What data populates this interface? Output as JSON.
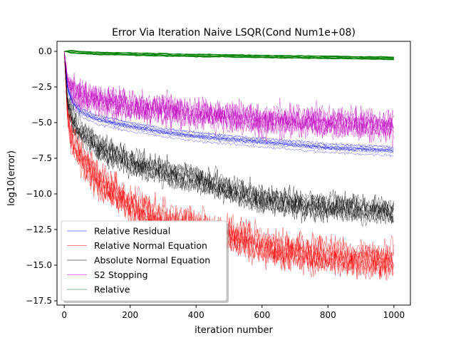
{
  "chart_data": {
    "type": "line",
    "title": "Error Via Iteration Naive LSQR(Cond Num1e+08)",
    "xlabel": "iteration number",
    "ylabel": "log10(error)",
    "xlim": [
      -22,
      1050
    ],
    "ylim": [
      -17.8,
      0.7
    ],
    "xticks": [
      0,
      200,
      400,
      600,
      800,
      1000
    ],
    "xtick_labels": [
      "0",
      "200",
      "400",
      "600",
      "800",
      "1000"
    ],
    "yticks": [
      0.0,
      -2.5,
      -5.0,
      -7.5,
      -10.0,
      -12.5,
      -15.0,
      -17.5
    ],
    "ytick_labels": [
      "0.0",
      "−2.5",
      "−5.0",
      "−7.5",
      "−10.0",
      "−12.5",
      "−15.0",
      "−17.5"
    ],
    "grid": false,
    "legend_position": "lower-left",
    "series": [
      {
        "name": "Relative Residual",
        "color": "#0000ff",
        "curves": 10,
        "x": [
          0,
          10,
          25,
          50,
          100,
          200,
          300,
          400,
          500,
          600,
          700,
          800,
          900,
          1000
        ],
        "y": [
          0,
          -2.6,
          -3.6,
          -4.3,
          -4.8,
          -5.3,
          -5.7,
          -6.0,
          -6.2,
          -6.4,
          -6.6,
          -6.8,
          -6.9,
          -7.0
        ]
      },
      {
        "name": "Relative Normal Equation",
        "color": "#ff0000",
        "curves": 10,
        "x": [
          0,
          10,
          25,
          50,
          100,
          200,
          300,
          400,
          500,
          600,
          700,
          800,
          900,
          1000
        ],
        "y": [
          0,
          -4.5,
          -6.0,
          -7.3,
          -8.8,
          -10.7,
          -11.8,
          -12.3,
          -12.8,
          -13.6,
          -14.0,
          -14.3,
          -14.5,
          -14.7
        ]
      },
      {
        "name": "Absolute Normal Equation",
        "color": "#000000",
        "curves": 10,
        "x": [
          0,
          10,
          25,
          50,
          100,
          200,
          300,
          400,
          500,
          600,
          700,
          800,
          900,
          1000
        ],
        "y": [
          0,
          -3.6,
          -4.7,
          -5.6,
          -6.6,
          -7.7,
          -8.4,
          -8.9,
          -9.6,
          -10.3,
          -10.6,
          -10.8,
          -11.0,
          -11.2
        ]
      },
      {
        "name": "S2 Stopping",
        "color": "#bf00bf",
        "curves": 10,
        "x": [
          0,
          10,
          25,
          50,
          100,
          200,
          300,
          400,
          500,
          600,
          700,
          800,
          900,
          1000
        ],
        "y": [
          0,
          -2.0,
          -2.6,
          -3.0,
          -3.4,
          -3.8,
          -4.1,
          -4.4,
          -4.6,
          -4.8,
          -4.9,
          -5.0,
          -5.1,
          -5.2
        ]
      },
      {
        "name": "Relative",
        "color": "#008000",
        "curves": 10,
        "x": [
          0,
          50,
          100,
          200,
          300,
          400,
          500,
          600,
          700,
          800,
          900,
          1000
        ],
        "y": [
          0,
          -0.1,
          -0.15,
          -0.2,
          -0.25,
          -0.3,
          -0.33,
          -0.37,
          -0.4,
          -0.43,
          -0.46,
          -0.5
        ]
      }
    ]
  }
}
